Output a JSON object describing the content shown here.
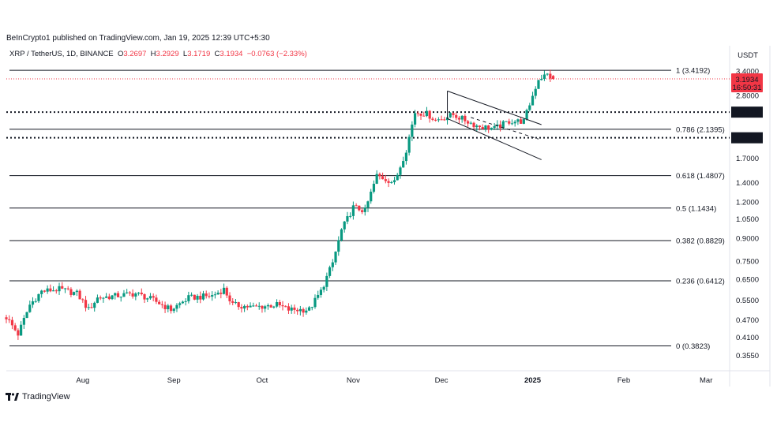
{
  "publisher": "BeInCrypto1 published on TradingView.com, Jan 19, 2025 12:39 UTC+5:30",
  "legend": {
    "symbol": "XRP / TetherUS, 1D, BINANCE",
    "o_label": "O",
    "o": "3.2697",
    "h_label": "H",
    "h": "3.2929",
    "l_label": "L",
    "l": "3.1719",
    "c_label": "C",
    "c": "3.1934",
    "change": "−0.0763 (−2.33%)"
  },
  "unit": "USDT",
  "brand": "TradingView",
  "colors": {
    "up": "#089981",
    "down": "#f23645",
    "fib": "#131722",
    "label_bg": "#131722"
  },
  "chart_data": {
    "type": "candlestick",
    "y_scale": "log",
    "ylim": [
      0.33,
      3.62
    ],
    "y_ticks": [
      "3.4000",
      "2.8000",
      "1.7000",
      "1.4000",
      "1.2000",
      "1.0500",
      "0.9000",
      "0.7500",
      "0.6500",
      "0.5500",
      "0.4700",
      "0.4100",
      "0.3550"
    ],
    "y_tick_values": [
      3.4,
      2.8,
      1.7,
      1.4,
      1.2,
      1.05,
      0.9,
      0.75,
      0.65,
      0.55,
      0.47,
      0.41,
      0.355
    ],
    "x_ticks": [
      "Aug",
      "Sep",
      "Oct",
      "Nov",
      "Dec",
      "2025",
      "Feb",
      "Mar"
    ],
    "x_tick_days": [
      26,
      57,
      87,
      118,
      148,
      179,
      210,
      238
    ],
    "bold_x_tick": "2025",
    "fib_levels": [
      {
        "label": "1 (3.4192)",
        "value": 3.4192
      },
      {
        "label": "0.786 (2.1395)",
        "value": 2.1395
      },
      {
        "label": "0.618 (1.4807)",
        "value": 1.4807
      },
      {
        "label": "0.5 (1.1434)",
        "value": 1.1434
      },
      {
        "label": "0.382 (0.8829)",
        "value": 0.8829
      },
      {
        "label": "0.236 (0.6412)",
        "value": 0.6412
      },
      {
        "label": "0 (0.3823)",
        "value": 0.3823
      }
    ],
    "dotted_levels": [
      {
        "label": "2.4519",
        "value": 2.4519
      },
      {
        "label": "1.9996",
        "value": 1.9996
      }
    ],
    "current_price": {
      "price": "3.1934",
      "countdown": "16:50:31",
      "value": 3.1934
    },
    "channel": {
      "upper": [
        [
          150,
          2.9
        ],
        [
          182,
          2.22
        ]
      ],
      "lower": [
        [
          150,
          2.33
        ],
        [
          182,
          1.68
        ]
      ],
      "mid": [
        [
          158,
          2.35
        ],
        [
          181,
          1.98
        ]
      ]
    },
    "anchors": [
      [
        0,
        0.48
      ],
      [
        4,
        0.42
      ],
      [
        8,
        0.53
      ],
      [
        12,
        0.59
      ],
      [
        18,
        0.6
      ],
      [
        24,
        0.58
      ],
      [
        28,
        0.51
      ],
      [
        31,
        0.56
      ],
      [
        38,
        0.57
      ],
      [
        44,
        0.58
      ],
      [
        50,
        0.55
      ],
      [
        56,
        0.51
      ],
      [
        62,
        0.56
      ],
      [
        70,
        0.57
      ],
      [
        74,
        0.6
      ],
      [
        77,
        0.53
      ],
      [
        84,
        0.52
      ],
      [
        92,
        0.53
      ],
      [
        96,
        0.51
      ],
      [
        103,
        0.51
      ],
      [
        107,
        0.59
      ],
      [
        111,
        0.74
      ],
      [
        114,
        0.96
      ],
      [
        118,
        1.15
      ],
      [
        122,
        1.12
      ],
      [
        126,
        1.48
      ],
      [
        132,
        1.4
      ],
      [
        136,
        1.82
      ],
      [
        139,
        2.45
      ],
      [
        143,
        2.42
      ],
      [
        146,
        2.3
      ],
      [
        152,
        2.4
      ],
      [
        156,
        2.3
      ],
      [
        160,
        2.2
      ],
      [
        166,
        2.15
      ],
      [
        171,
        2.28
      ],
      [
        176,
        2.28
      ],
      [
        181,
        3.2
      ],
      [
        184,
        3.3
      ],
      [
        186,
        3.19
      ]
    ]
  }
}
